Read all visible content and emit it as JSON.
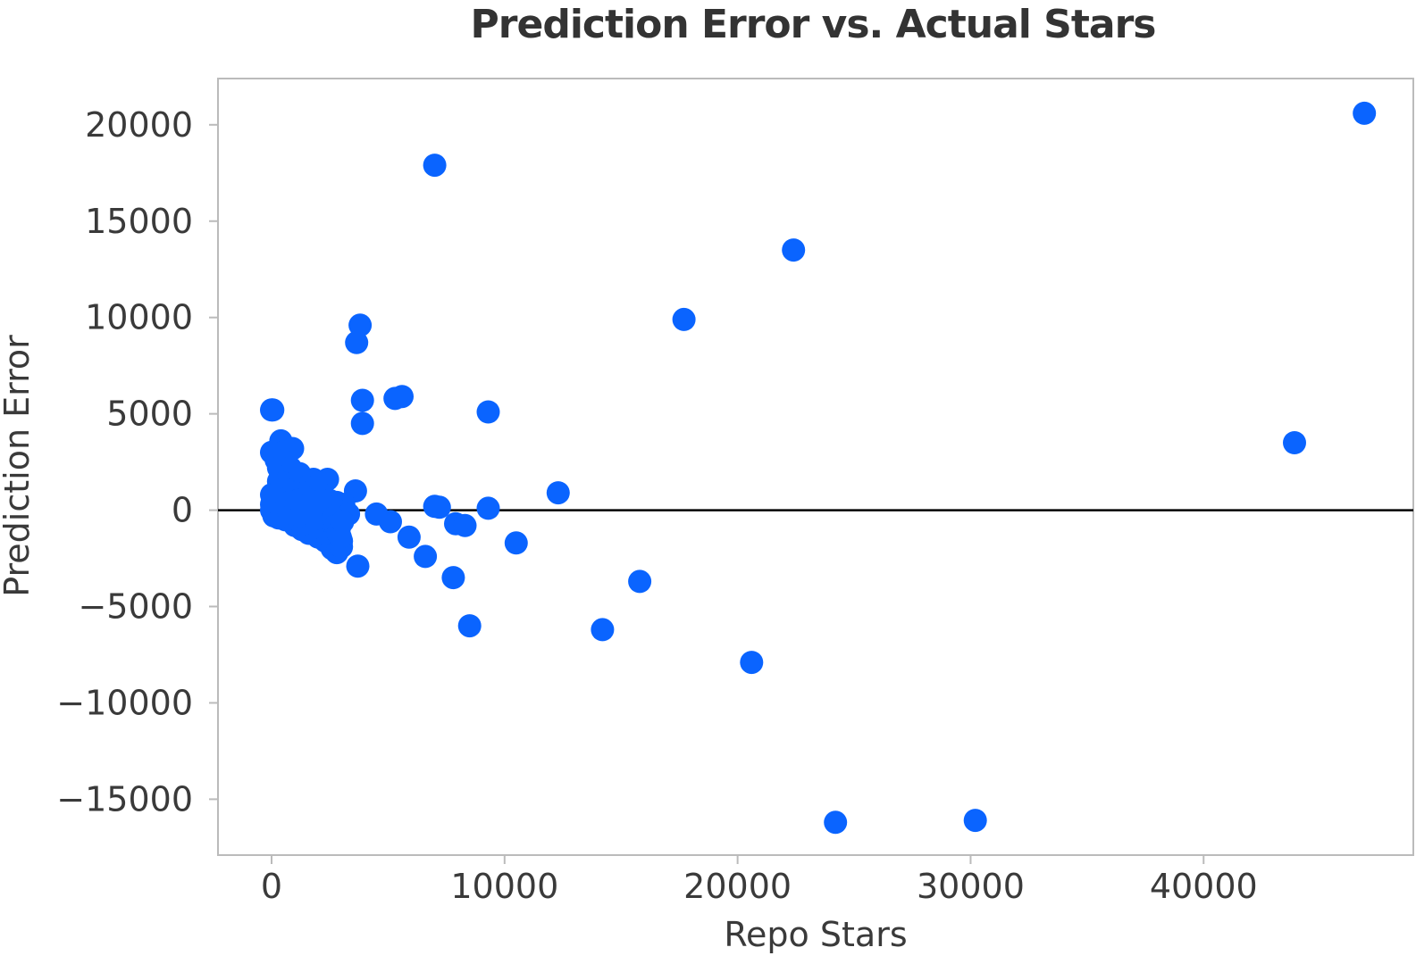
{
  "chart_data": {
    "type": "scatter",
    "title": "Prediction Error vs. Actual Stars",
    "xlabel": "Repo Stars",
    "ylabel": "Prediction Error",
    "xlim": [
      -2300,
      49000
    ],
    "ylim": [
      -17900,
      22400
    ],
    "xticks": [
      0,
      10000,
      20000,
      30000,
      40000
    ],
    "yticks": [
      20000,
      15000,
      10000,
      5000,
      0,
      -5000,
      -10000,
      -15000
    ],
    "xtick_labels": [
      "0",
      "10000",
      "20000",
      "30000",
      "40000"
    ],
    "ytick_labels": [
      "20000",
      "15000",
      "10000",
      "5000",
      "0",
      "−5000",
      "−10000",
      "−15000"
    ],
    "reference_line_y": 0,
    "grid": false,
    "point_color": "#0a64ff",
    "reference_line_color": "#000000",
    "frame_color": "#bbbbbb",
    "series": [
      {
        "points": [
          [
            46900,
            20600
          ],
          [
            7000,
            17900
          ],
          [
            22400,
            13500
          ],
          [
            17700,
            9900
          ],
          [
            3800,
            9600
          ],
          [
            3650,
            8700
          ],
          [
            3900,
            5700
          ],
          [
            3900,
            4500
          ],
          [
            5300,
            5800
          ],
          [
            5600,
            5900
          ],
          [
            9300,
            5100
          ],
          [
            0,
            5200
          ],
          [
            50,
            5200
          ],
          [
            43900,
            3500
          ],
          [
            12300,
            900
          ],
          [
            3600,
            1000
          ],
          [
            7000,
            200
          ],
          [
            7200,
            150
          ],
          [
            9300,
            100
          ],
          [
            4500,
            -200
          ],
          [
            5100,
            -600
          ],
          [
            5900,
            -1400
          ],
          [
            7900,
            -700
          ],
          [
            8300,
            -800
          ],
          [
            10500,
            -1700
          ],
          [
            6600,
            -2400
          ],
          [
            7800,
            -3500
          ],
          [
            15800,
            -3700
          ],
          [
            3700,
            -2900
          ],
          [
            8500,
            -6000
          ],
          [
            14200,
            -6200
          ],
          [
            20600,
            -7900
          ],
          [
            24200,
            -16200
          ],
          [
            30200,
            -16100
          ],
          [
            0,
            3000
          ],
          [
            400,
            3600
          ],
          [
            500,
            3000
          ],
          [
            900,
            3200
          ],
          [
            200,
            2600
          ],
          [
            300,
            2200
          ],
          [
            600,
            2500
          ],
          [
            800,
            2200
          ],
          [
            700,
            1800
          ],
          [
            1000,
            1600
          ],
          [
            1200,
            1900
          ],
          [
            1800,
            1600
          ],
          [
            2400,
            1600
          ],
          [
            2100,
            1400
          ],
          [
            1500,
            1200
          ],
          [
            300,
            1500
          ],
          [
            500,
            1400
          ],
          [
            0,
            800
          ],
          [
            100,
            600
          ],
          [
            400,
            800
          ],
          [
            700,
            1000
          ],
          [
            1000,
            900
          ],
          [
            1300,
            700
          ],
          [
            1600,
            900
          ],
          [
            1900,
            700
          ],
          [
            2200,
            800
          ],
          [
            2500,
            500
          ],
          [
            2800,
            400
          ],
          [
            3100,
            300
          ],
          [
            0,
            300
          ],
          [
            300,
            200
          ],
          [
            600,
            100
          ],
          [
            900,
            300
          ],
          [
            1200,
            200
          ],
          [
            1500,
            0
          ],
          [
            1800,
            100
          ],
          [
            2100,
            -100
          ],
          [
            2400,
            0
          ],
          [
            2700,
            100
          ],
          [
            3000,
            -100
          ],
          [
            3300,
            -200
          ],
          [
            0,
            0
          ],
          [
            200,
            -100
          ],
          [
            500,
            -200
          ],
          [
            800,
            -300
          ],
          [
            1100,
            -400
          ],
          [
            1400,
            -500
          ],
          [
            1700,
            -600
          ],
          [
            2000,
            -700
          ],
          [
            2300,
            -800
          ],
          [
            2600,
            -900
          ],
          [
            2900,
            -1000
          ],
          [
            1000,
            -800
          ],
          [
            1300,
            -1000
          ],
          [
            1600,
            -1200
          ],
          [
            2000,
            -1400
          ],
          [
            2300,
            -1600
          ],
          [
            2700,
            -1700
          ],
          [
            3000,
            -1600
          ],
          [
            2600,
            -2000
          ],
          [
            2800,
            -2200
          ],
          [
            3000,
            -1900
          ],
          [
            2200,
            -1200
          ],
          [
            1800,
            -900
          ],
          [
            1400,
            -700
          ],
          [
            900,
            -600
          ],
          [
            600,
            -500
          ],
          [
            300,
            -400
          ],
          [
            100,
            -300
          ],
          [
            50,
            200
          ],
          [
            150,
            400
          ],
          [
            250,
            700
          ],
          [
            350,
            1000
          ],
          [
            450,
            1300
          ],
          [
            550,
            1100
          ],
          [
            650,
            600
          ],
          [
            750,
            400
          ],
          [
            850,
            0
          ],
          [
            950,
            -200
          ],
          [
            1050,
            300
          ],
          [
            1150,
            500
          ],
          [
            1250,
            -300
          ],
          [
            1350,
            400
          ],
          [
            1450,
            600
          ],
          [
            1550,
            300
          ],
          [
            1650,
            -200
          ],
          [
            1750,
            200
          ],
          [
            1850,
            400
          ],
          [
            1950,
            -400
          ],
          [
            2050,
            300
          ],
          [
            2150,
            500
          ],
          [
            2250,
            -500
          ],
          [
            2350,
            200
          ],
          [
            2450,
            -300
          ],
          [
            2550,
            -600
          ],
          [
            2650,
            -400
          ],
          [
            2750,
            -800
          ],
          [
            2850,
            -1200
          ],
          [
            2950,
            -1400
          ],
          [
            3050,
            -600
          ]
        ]
      }
    ]
  }
}
